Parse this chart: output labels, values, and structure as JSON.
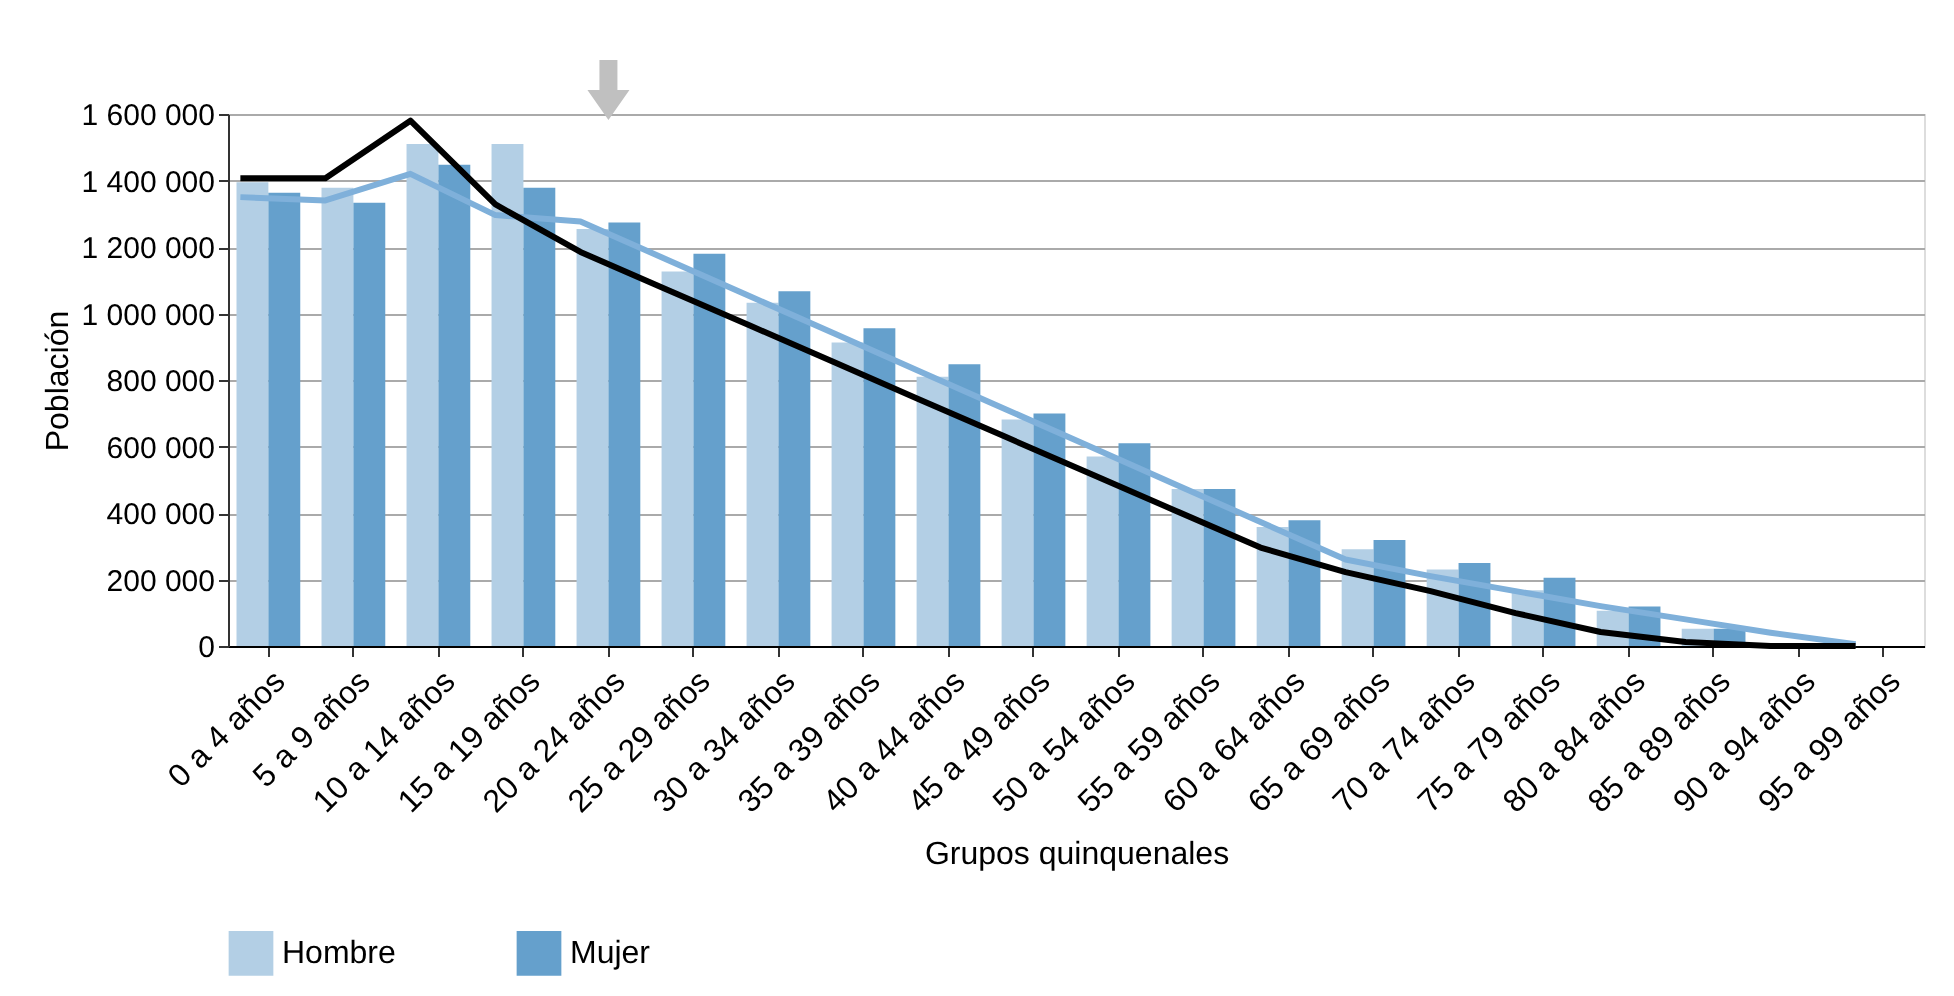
{
  "chart_data": {
    "type": "bar",
    "xlabel": "Grupos quinquenales",
    "ylabel": "Población",
    "categories": [
      "0 a 4 años",
      "5 a 9 años",
      "10 a 14 años",
      "15 a 19 años",
      "20 a 24 años",
      "25 a 29 años",
      "30 a 34 años",
      "35 a 39 años",
      "40 a 44 años",
      "45 a 49 años",
      "50 a 54 años",
      "55 a 59 años",
      "60 a 64 años",
      "65 a 69 años",
      "70 a 74 años",
      "75 a 79 años",
      "80 a 84 años",
      "85 a 89 años",
      "90 a 94 años",
      "95 a 99 años"
    ],
    "series": [
      {
        "name": "Hombre",
        "color": "#b3cfe5",
        "values": [
          1395000,
          1378000,
          1510000,
          1510000,
          1254000,
          1126000,
          1032000,
          913000,
          810000,
          681000,
          570000,
          472000,
          358000,
          291000,
          230000,
          168000,
          106000,
          52000,
          null,
          null
        ]
      },
      {
        "name": "Mujer",
        "color": "#65a0cc",
        "values": [
          1363000,
          1333000,
          1447000,
          1378000,
          1274000,
          1180000,
          1067000,
          956000,
          847000,
          699000,
          610000,
          472000,
          378000,
          319000,
          250000,
          205000,
          119000,
          52000,
          null,
          null
        ]
      },
      {
        "type": "line",
        "color": "#7fb0da",
        "values": [
          1350000,
          1340000,
          1420000,
          1296000,
          1277000,
          1164000,
          1051000,
          938000,
          825000,
          712000,
          599000,
          486000,
          373000,
          260000,
          210000,
          165000,
          120000,
          80000,
          40000,
          5000
        ]
      },
      {
        "type": "line",
        "color": "#000000",
        "values": [
          1407000,
          1407000,
          1580000,
          1328000,
          1185000,
          1074000,
          963000,
          852000,
          740000,
          629000,
          518000,
          407000,
          296000,
          222000,
          165000,
          99000,
          42000,
          12000,
          0,
          0
        ]
      }
    ],
    "ylim": [
      0,
      1600000
    ],
    "yticks": [
      {
        "value": 0,
        "label": "0"
      },
      {
        "value": 200000,
        "label": "200 000"
      },
      {
        "value": 400000,
        "label": "400 000"
      },
      {
        "value": 600000,
        "label": "600 000"
      },
      {
        "value": 800000,
        "label": "800 000"
      },
      {
        "value": 1000000,
        "label": "1 000 000"
      },
      {
        "value": 1200000,
        "label": "1 200 000"
      },
      {
        "value": 1400000,
        "label": "1 400 000"
      },
      {
        "value": 1600000,
        "label": "1 600 000"
      }
    ],
    "grid": "y",
    "legend": "bottom left",
    "line_style": "solid",
    "marker": "none"
  }
}
